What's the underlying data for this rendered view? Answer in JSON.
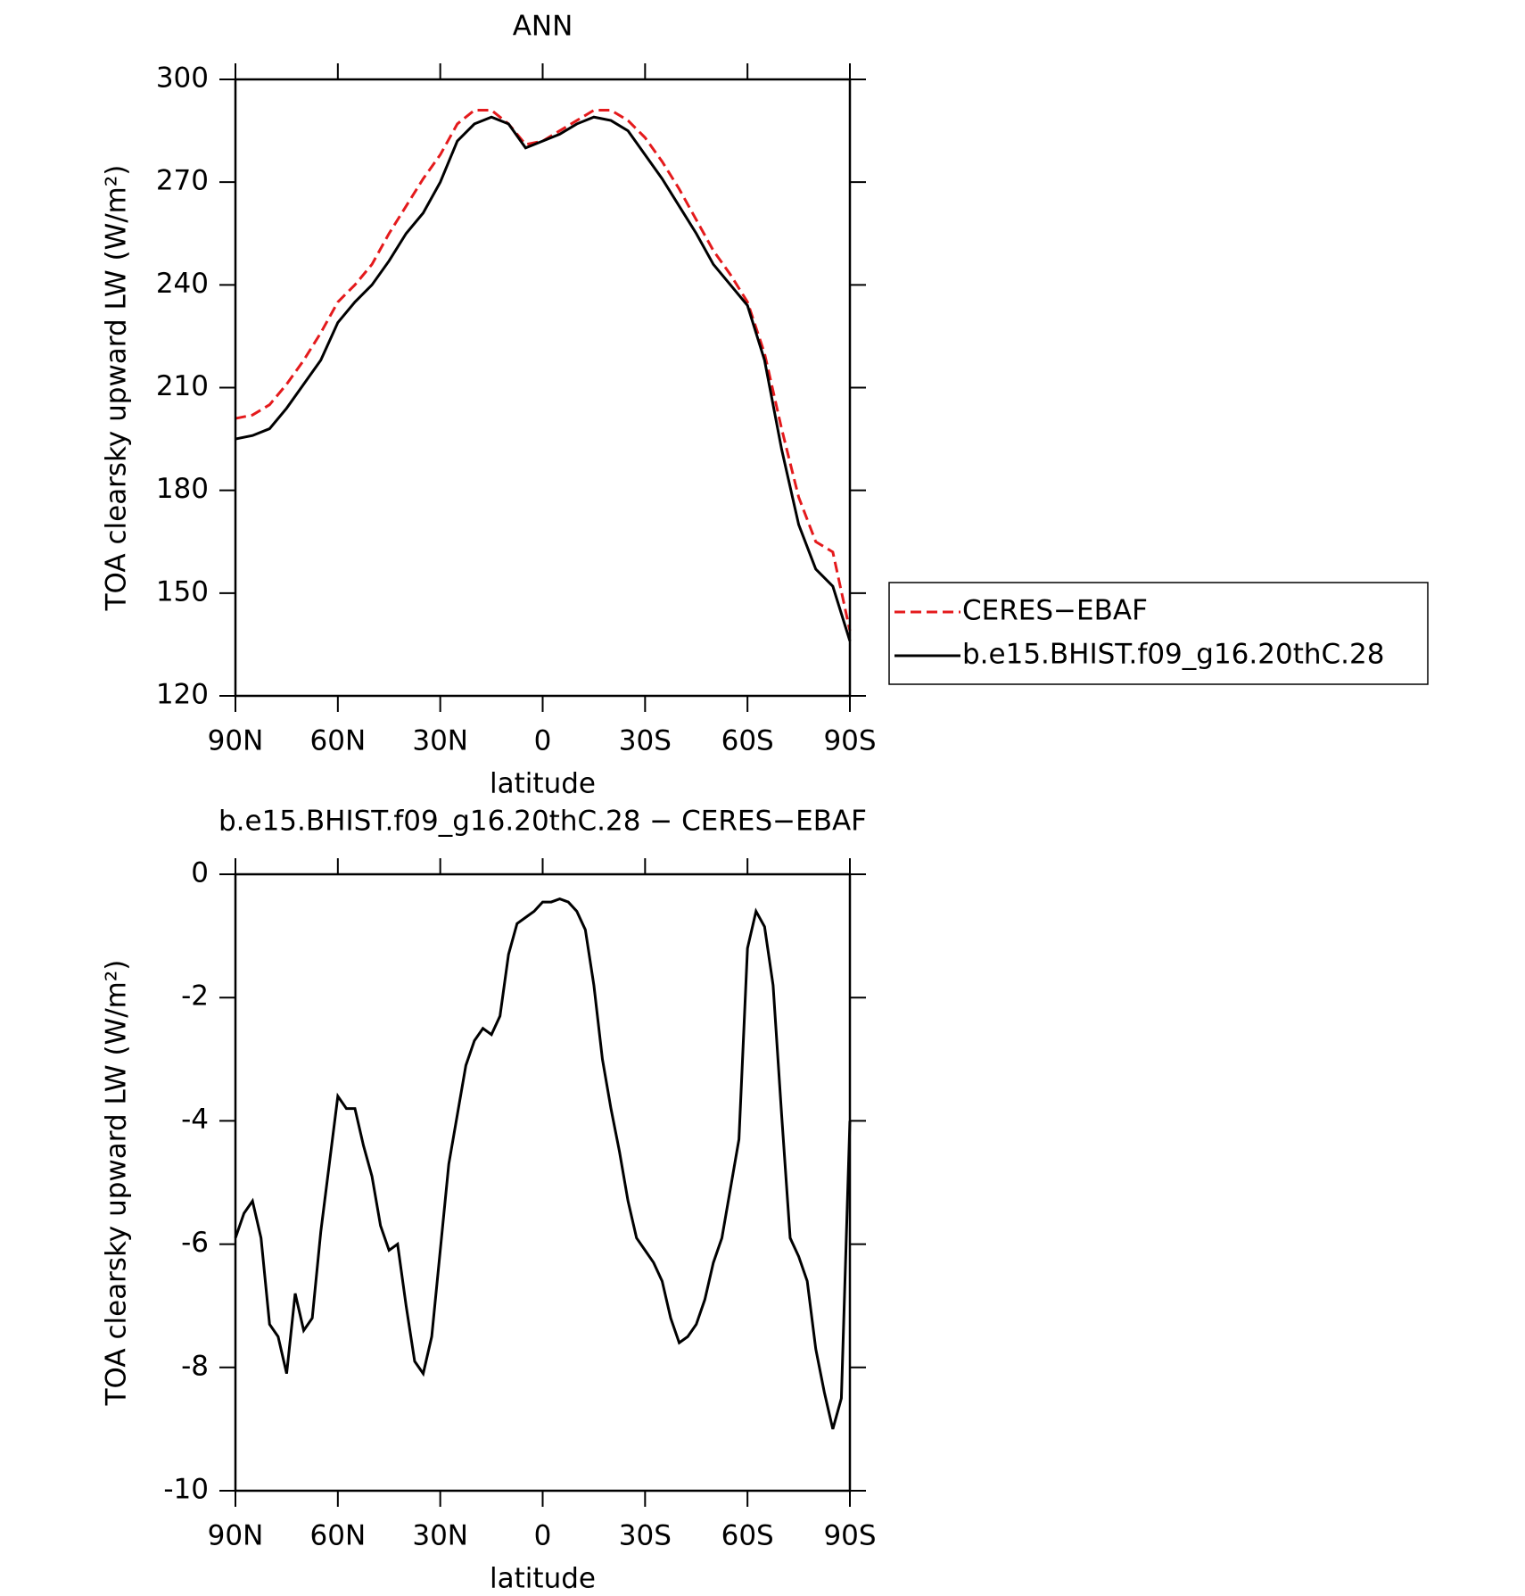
{
  "chart_data": [
    {
      "type": "line",
      "title": "ANN",
      "xlabel": "latitude",
      "ylabel": "TOA clearsky upward LW (W/m²)",
      "x": [
        90,
        85,
        80,
        75,
        70,
        65,
        60,
        55,
        50,
        45,
        40,
        35,
        30,
        25,
        20,
        15,
        10,
        5,
        0,
        -5,
        -10,
        -15,
        -20,
        -25,
        -30,
        -35,
        -40,
        -45,
        -50,
        -55,
        -60,
        -65,
        -70,
        -75,
        -80,
        -85,
        -90
      ],
      "series": [
        {
          "name": "CERES−EBAF",
          "color": "#e41a1c",
          "dash": true,
          "values": [
            201,
            202,
            205,
            211,
            218,
            226,
            235,
            240,
            246,
            255,
            263,
            271,
            278,
            287,
            291,
            291,
            287,
            281,
            282,
            285,
            288,
            291,
            291,
            288,
            283,
            276,
            268,
            259,
            250,
            243,
            235,
            220,
            198,
            178,
            165,
            162,
            139
          ]
        },
        {
          "name": "b.e15.BHIST.f09_g16.20thC.28",
          "color": "#000000",
          "dash": false,
          "values": [
            195,
            196,
            198,
            204,
            211,
            218,
            229,
            235,
            240,
            247,
            255,
            261,
            270,
            282,
            287,
            289,
            287,
            280,
            282,
            284,
            287,
            289,
            288,
            285,
            278,
            271,
            263,
            255,
            246,
            240,
            234,
            218,
            192,
            170,
            157,
            152,
            136
          ]
        }
      ],
      "xlim": [
        90,
        -90
      ],
      "xticks": [
        {
          "value": 90,
          "label": "90N"
        },
        {
          "value": 60,
          "label": "60N"
        },
        {
          "value": 30,
          "label": "30N"
        },
        0,
        {
          "value": -30,
          "label": "30S"
        },
        {
          "value": -60,
          "label": "60S"
        },
        {
          "value": -90,
          "label": "90S"
        }
      ],
      "ylim": [
        120,
        300
      ],
      "yticks": [
        120,
        150,
        180,
        210,
        240,
        270,
        300
      ],
      "legend": "right"
    },
    {
      "type": "line",
      "title": "b.e15.BHIST.f09_g16.20thC.28 − CERES−EBAF",
      "xlabel": "latitude",
      "ylabel": "TOA clearsky upward LW (W/m²)",
      "x": [
        90,
        87.5,
        85,
        82.5,
        80,
        77.5,
        75,
        72.5,
        70,
        67.5,
        65,
        62.5,
        60,
        57.5,
        55,
        52.5,
        50,
        47.5,
        45,
        42.5,
        40,
        37.5,
        35,
        32.5,
        30,
        27.5,
        25,
        22.5,
        20,
        17.5,
        15,
        12.5,
        10,
        7.5,
        5,
        2.5,
        0,
        -2.5,
        -5,
        -7.5,
        -10,
        -12.5,
        -15,
        -17.5,
        -20,
        -22.5,
        -25,
        -27.5,
        -30,
        -32.5,
        -35,
        -37.5,
        -40,
        -42.5,
        -45,
        -47.5,
        -50,
        -52.5,
        -55,
        -57.5,
        -60,
        -62.5,
        -65,
        -67.5,
        -70,
        -72.5,
        -75,
        -77.5,
        -80,
        -82.5,
        -85,
        -87.5,
        -90
      ],
      "series": [
        {
          "color": "#000000",
          "dash": false,
          "values": [
            -5.9,
            -5.5,
            -5.3,
            -5.9,
            -7.3,
            -7.5,
            -8.1,
            -6.8,
            -7.4,
            -7.2,
            -5.8,
            -4.7,
            -3.6,
            -3.8,
            -3.8,
            -4.4,
            -4.9,
            -5.7,
            -6.1,
            -6.0,
            -7.0,
            -7.9,
            -8.1,
            -7.5,
            -6.1,
            -4.7,
            -3.9,
            -3.1,
            -2.7,
            -2.5,
            -2.6,
            -2.3,
            -1.3,
            -0.8,
            -0.7,
            -0.6,
            -0.45,
            -0.45,
            -0.4,
            -0.45,
            -0.6,
            -0.9,
            -1.8,
            -3.0,
            -3.8,
            -4.5,
            -5.3,
            -5.9,
            -6.1,
            -6.3,
            -6.6,
            -7.2,
            -7.6,
            -7.5,
            -7.3,
            -6.9,
            -6.3,
            -5.9,
            -5.1,
            -4.3,
            -1.2,
            -0.6,
            -0.85,
            -1.8,
            -3.9,
            -5.9,
            -6.2,
            -6.6,
            -7.7,
            -8.4,
            -9.0,
            -8.5,
            -4.0
          ]
        }
      ],
      "xlim": [
        90,
        -90
      ],
      "xticks": [
        {
          "value": 90,
          "label": "90N"
        },
        {
          "value": 60,
          "label": "60N"
        },
        {
          "value": 30,
          "label": "30N"
        },
        0,
        {
          "value": -30,
          "label": "30S"
        },
        {
          "value": -60,
          "label": "60S"
        },
        {
          "value": -90,
          "label": "90S"
        }
      ],
      "ylim": [
        -10,
        0
      ],
      "yticks": [
        -10,
        -8,
        -6,
        -4,
        -2,
        0
      ]
    }
  ]
}
